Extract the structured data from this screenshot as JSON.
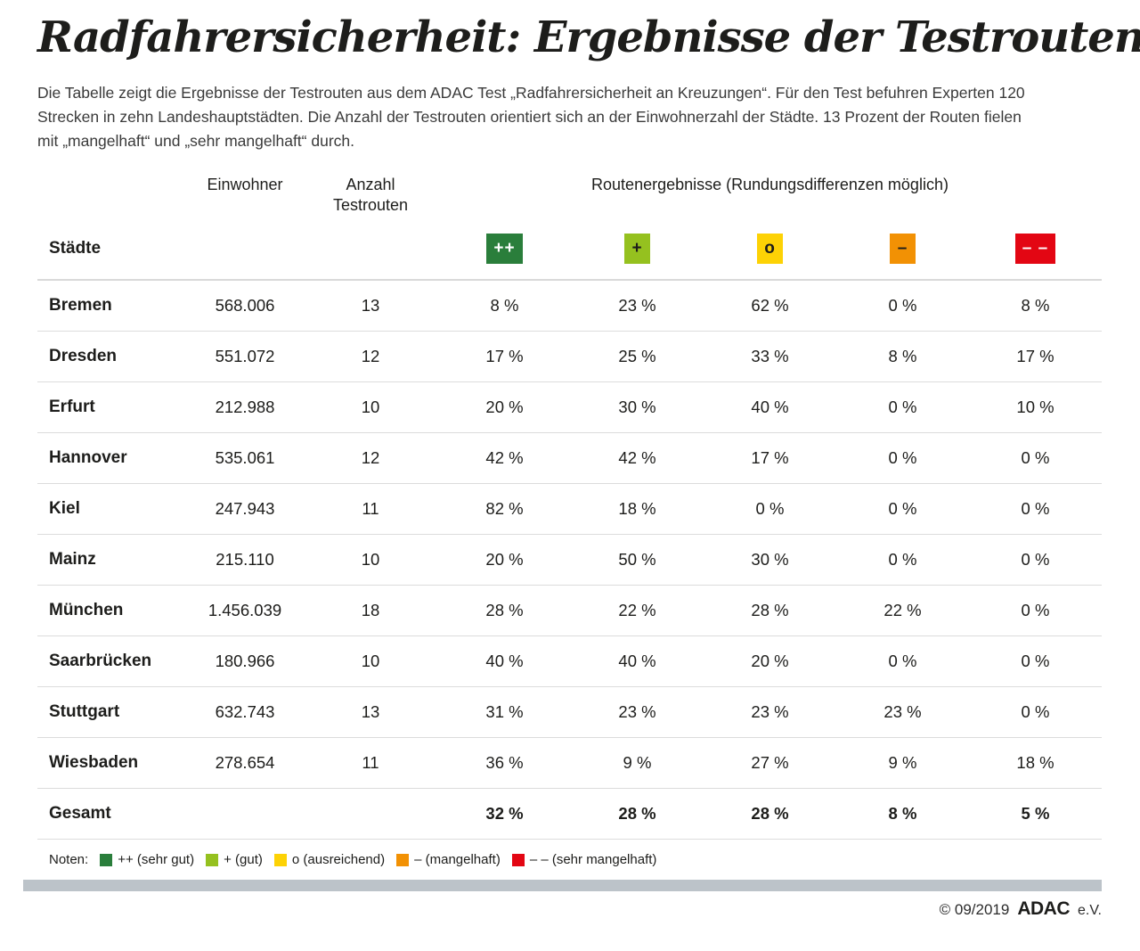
{
  "header": {
    "title": "Radfahrersicherheit: Ergebnisse der Testrouten",
    "intro_lines": [
      "Die Tabelle zeigt die Ergebnisse der Testrouten aus dem ADAC Test „Radfahrersicherheit an Kreuzungen“. Für den Test befuhren Experten 120",
      "Strecken in zehn Landeshauptstädten. Die Anzahl der Testrouten orientiert sich an der Einwohnerzahl der Städte. 13 Prozent der Routen fielen",
      "mit „mangelhaft“ und „sehr mangelhaft“ durch."
    ]
  },
  "table": {
    "headers": {
      "staedte": "Städte",
      "einwohner": "Einwohner",
      "anzahl_line1": "Anzahl",
      "anzahl_line2": "Testrouten",
      "routenergebnisse": "Routenergebnisse (Rundungsdifferenzen möglich)"
    },
    "grades": [
      {
        "symbol": "++",
        "bg": "#2a7e3b",
        "fg": "#ffffff",
        "legend": "++ (sehr gut)"
      },
      {
        "symbol": "+",
        "bg": "#95c11f",
        "fg": "#1d1d1b",
        "legend": "+ (gut)"
      },
      {
        "symbol": "o",
        "bg": "#fdd205",
        "fg": "#1d1d1b",
        "legend": "o (ausreichend)"
      },
      {
        "symbol": "–",
        "bg": "#f29104",
        "fg": "#1d1d1b",
        "legend": "– (mangelhaft)"
      },
      {
        "symbol": "– –",
        "bg": "#e30613",
        "fg": "#ffffff",
        "legend": "– – (sehr mangelhaft)"
      }
    ],
    "rows": [
      {
        "city": "Bremen",
        "einwohner": "568.006",
        "testrouten": "13",
        "results": [
          "8 %",
          "23 %",
          "62 %",
          "0 %",
          "8 %"
        ]
      },
      {
        "city": "Dresden",
        "einwohner": "551.072",
        "testrouten": "12",
        "results": [
          "17 %",
          "25 %",
          "33 %",
          "8 %",
          "17 %"
        ]
      },
      {
        "city": "Erfurt",
        "einwohner": "212.988",
        "testrouten": "10",
        "results": [
          "20 %",
          "30 %",
          "40 %",
          "0 %",
          "10 %"
        ]
      },
      {
        "city": "Hannover",
        "einwohner": "535.061",
        "testrouten": "12",
        "results": [
          "42 %",
          "42 %",
          "17 %",
          "0 %",
          "0 %"
        ]
      },
      {
        "city": "Kiel",
        "einwohner": "247.943",
        "testrouten": "11",
        "results": [
          "82 %",
          "18 %",
          "0 %",
          "0 %",
          "0 %"
        ]
      },
      {
        "city": "Mainz",
        "einwohner": "215.110",
        "testrouten": "10",
        "results": [
          "20 %",
          "50 %",
          "30 %",
          "0 %",
          "0 %"
        ]
      },
      {
        "city": "München",
        "einwohner": "1.456.039",
        "testrouten": "18",
        "results": [
          "28 %",
          "22 %",
          "28 %",
          "22 %",
          "0 %"
        ]
      },
      {
        "city": "Saarbrücken",
        "einwohner": "180.966",
        "testrouten": "10",
        "results": [
          "40 %",
          "40 %",
          "20 %",
          "0 %",
          "0 %"
        ]
      },
      {
        "city": "Stuttgart",
        "einwohner": "632.743",
        "testrouten": "13",
        "results": [
          "31 %",
          "23 %",
          "23 %",
          "23 %",
          "0 %"
        ]
      },
      {
        "city": "Wiesbaden",
        "einwohner": "278.654",
        "testrouten": "11",
        "results": [
          "36 %",
          "9 %",
          "27 %",
          "9 %",
          "18 %"
        ]
      },
      {
        "city": "Gesamt",
        "einwohner": "",
        "testrouten": "",
        "results": [
          "32 %",
          "28 %",
          "28 %",
          "8 %",
          "5 %"
        ],
        "total": true
      }
    ]
  },
  "legend": {
    "title": "Noten:"
  },
  "footer": {
    "copyright": "© 09/2019",
    "brand": "ADAC",
    "suffix": "e.V."
  },
  "colors": {
    "divider_bar": "#bcc3c9",
    "row_line": "#dcdcdc",
    "text": "#1d1d1b"
  },
  "chart_data": {
    "type": "table",
    "title": "Radfahrersicherheit: Ergebnisse der Testrouten",
    "note": "Routenergebnisse (Rundungsdifferenzen möglich)",
    "columns": [
      "Städte",
      "Einwohner",
      "Anzahl Testrouten",
      "++ (sehr gut) %",
      "+ (gut) %",
      "o (ausreichend) %",
      "– (mangelhaft) %",
      "– – (sehr mangelhaft) %"
    ],
    "rows": [
      [
        "Bremen",
        568006,
        13,
        8,
        23,
        62,
        0,
        8
      ],
      [
        "Dresden",
        551072,
        12,
        17,
        25,
        33,
        8,
        17
      ],
      [
        "Erfurt",
        212988,
        10,
        20,
        30,
        40,
        0,
        10
      ],
      [
        "Hannover",
        535061,
        12,
        42,
        42,
        17,
        0,
        0
      ],
      [
        "Kiel",
        247943,
        11,
        82,
        18,
        0,
        0,
        0
      ],
      [
        "Mainz",
        215110,
        10,
        20,
        50,
        30,
        0,
        0
      ],
      [
        "München",
        1456039,
        18,
        28,
        22,
        28,
        22,
        0
      ],
      [
        "Saarbrücken",
        180966,
        10,
        40,
        40,
        20,
        0,
        0
      ],
      [
        "Stuttgart",
        632743,
        13,
        31,
        23,
        23,
        23,
        0
      ],
      [
        "Wiesbaden",
        278654,
        11,
        36,
        9,
        27,
        9,
        18
      ],
      [
        "Gesamt",
        null,
        null,
        32,
        28,
        28,
        8,
        5
      ]
    ]
  }
}
